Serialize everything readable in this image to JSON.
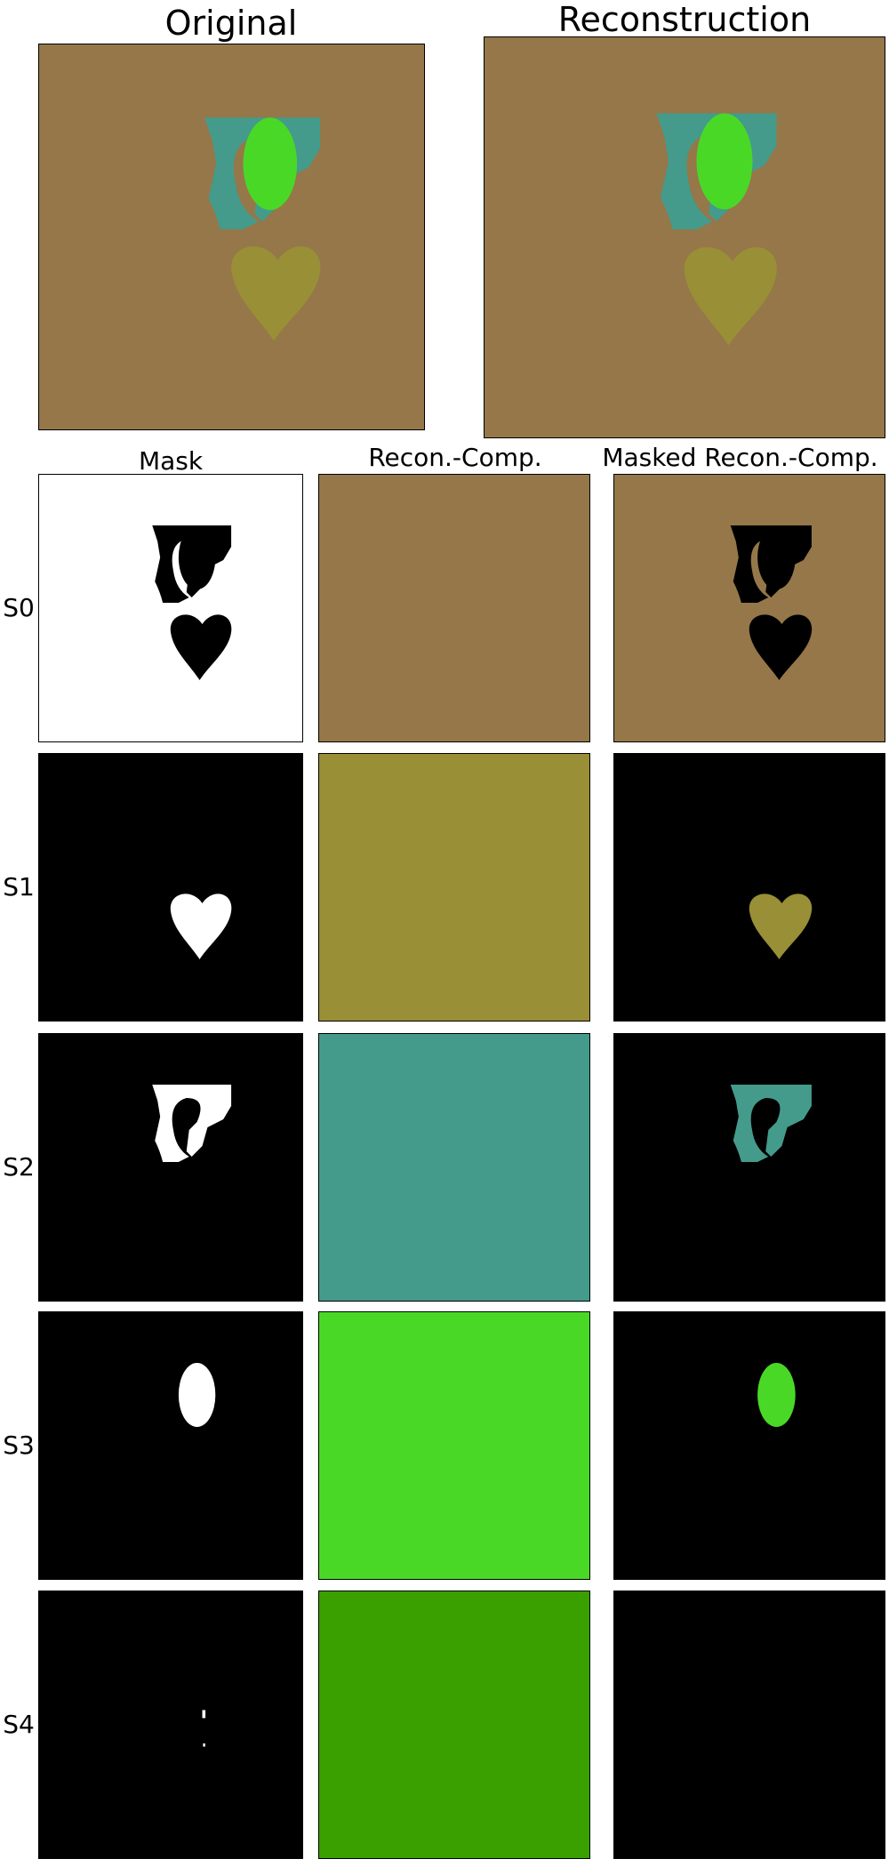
{
  "titles": {
    "original": "Original",
    "reconstruction": "Reconstruction"
  },
  "columns": {
    "mask": "Mask",
    "recon_comp": "Recon.-Comp.",
    "masked_recon_comp": "Masked Recon.-Comp."
  },
  "slots": [
    {
      "label": "S0",
      "color": "#957749",
      "mask": "background"
    },
    {
      "label": "S1",
      "color": "#988f36",
      "mask": "heart"
    },
    {
      "label": "S2",
      "color": "#449b8b",
      "mask": "crescent"
    },
    {
      "label": "S3",
      "color": "#4ad827",
      "mask": "ellipse"
    },
    {
      "label": "S4",
      "color": "#39a000",
      "mask": "speck"
    }
  ],
  "scene_colors": {
    "background": "#957749",
    "teal_shape": "#449b8b",
    "green_ellipse": "#4ad827",
    "heart": "#988f36"
  }
}
